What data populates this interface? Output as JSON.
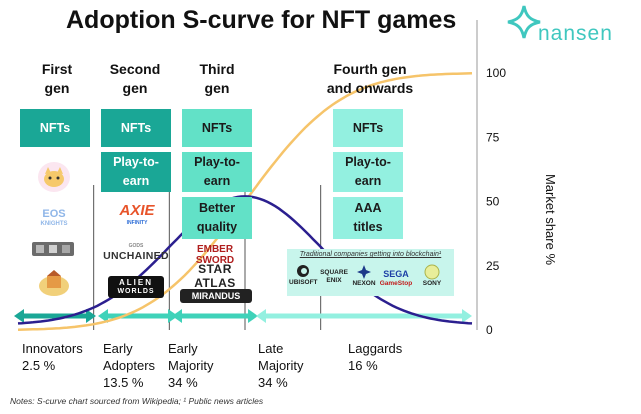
{
  "title": "Adoption S-curve for NFT games",
  "brand": {
    "name": "nansen",
    "color": "#3fc7bf"
  },
  "generations": [
    {
      "label": "First gen",
      "boxes": [
        "NFTs"
      ],
      "games": [
        "cat-avatar-icon",
        "eos-knights-icon",
        "tiles-icon",
        "kingdom-icon"
      ]
    },
    {
      "label": "Second gen",
      "boxes": [
        "NFTs",
        "Play-to-earn"
      ],
      "games": [
        "axie-infinity-icon",
        "unchained-icon",
        "alien-worlds-icon"
      ]
    },
    {
      "label": "Third gen",
      "boxes": [
        "NFTs",
        "Play-to-earn",
        "Better quality"
      ],
      "games": [
        "ember-sword-icon",
        "star-atlas-icon",
        "mirandus-icon"
      ]
    },
    {
      "label": "Fourth gen and onwards",
      "boxes": [
        "NFTs",
        "Play-to-earn",
        "AAA titles"
      ]
    }
  ],
  "gen_labels": {
    "g1_line1": "First",
    "g1_line2": "gen",
    "g2_line1": "Second",
    "g2_line2": "gen",
    "g3_line1": "Third",
    "g3_line2": "gen",
    "g4_line1": "Fourth gen",
    "g4_line2": "and onwards"
  },
  "box_text": {
    "nfts": "NFTs",
    "p2e_1": "Play-to-",
    "p2e_2": "earn",
    "better_1": "Better",
    "better_2": "quality",
    "aaa_1": "AAA",
    "aaa_2": "titles"
  },
  "game_logos": {
    "axie": "AXIE",
    "axie_sub": "INFINITY",
    "eos": "EOS",
    "eos_sub": "KNIGHTS",
    "gods": "GODS",
    "unchained": "UNCHAINED",
    "alien": "ALIEN",
    "worlds": "WORLDS",
    "ember": "EMBER SWORD",
    "star": "STAR ATLAS",
    "mirandus": "MIRANDUS"
  },
  "traditional": {
    "title": "Traditional companies getting into blockchain¹",
    "companies": [
      "UBISOFT",
      "SQUARE ENIX",
      "NEXON",
      "SEGA",
      "GameStop",
      "SONY"
    ]
  },
  "stages": [
    {
      "name": "Innovators",
      "pct": "2.5 %"
    },
    {
      "name": "Early Adopters",
      "pct": "13.5 %"
    },
    {
      "name": "Early Majority",
      "pct": "34 %"
    },
    {
      "name": "Late Majority",
      "pct": "34 %"
    },
    {
      "name": "Laggards",
      "pct": "16 %"
    }
  ],
  "stage_text": {
    "s1_l1": "Innovators",
    "s1_l2": "2.5 %",
    "s2_l1": "Early",
    "s2_l2": "Adopters",
    "s2_l3": "13.5 %",
    "s3_l1": "Early",
    "s3_l2": "Majority",
    "s3_l3": "34 %",
    "s4_l1": "Late",
    "s4_l2": "Majority",
    "s4_l3": "34 %",
    "s5_l1": "Laggards",
    "s5_l2": "16 %"
  },
  "notes": "Notes: S-curve chart sourced from Wikipedia; ¹ Public news articles",
  "chart_data": {
    "type": "line",
    "ylabel": "Market share %",
    "ylim": [
      0,
      100
    ],
    "yticks": [
      0,
      25,
      50,
      75,
      100
    ],
    "xlim": [
      -3,
      3
    ],
    "stage_boundaries": [
      -2,
      -1,
      0,
      1
    ],
    "series": [
      {
        "name": "",
        "color": "#f6c46a",
        "kind": "cumulative"
      },
      {
        "name": "",
        "color": "#2b1f8f",
        "kind": "bell"
      }
    ],
    "colors": {
      "teal": "#1aa796",
      "mint": "#62e1c7",
      "aqua": "#93f0e0",
      "arrow1": "#1aa796",
      "arrow2": "#3fd2b9",
      "arrow3": "#93f0e0"
    }
  }
}
